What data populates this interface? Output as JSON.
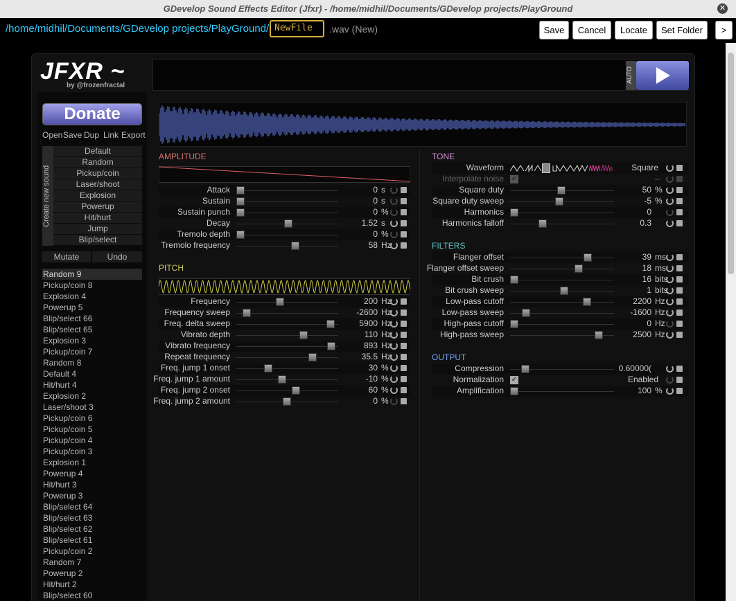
{
  "window": {
    "title": "GDevelop Sound Effects Editor (Jfxr) - /home/midhil/Documents/GDevelop projects/PlayGround"
  },
  "toolbar": {
    "path": "/home/midhil/Documents/GDevelop projects/PlayGround/",
    "filename": "NewFile",
    "extension": ".wav (New)",
    "buttons": [
      "Save",
      "Cancel",
      "Locate",
      "Set Folder",
      ">"
    ]
  },
  "logo": {
    "title": "JFXR ~",
    "byline": "by @frozenfractal"
  },
  "player": {
    "auto": "AUTO"
  },
  "sidebar": {
    "donate": "Donate",
    "file_actions": [
      "Open",
      "Save",
      "Dup",
      "Link",
      "Export"
    ],
    "create_label": "Create new sound",
    "presets": [
      "Default",
      "Random",
      "Pickup/coin",
      "Laser/shoot",
      "Explosion",
      "Powerup",
      "Hit/hurt",
      "Jump",
      "Blip/select"
    ],
    "mutate": "Mutate",
    "undo": "Undo",
    "history": [
      "Random 9",
      "Pickup/coin 8",
      "Explosion 4",
      "Powerup 5",
      "Blip/select 66",
      "Blip/select 65",
      "Explosion 3",
      "Pickup/coin 7",
      "Random 8",
      "Default 4",
      "Hit/hurt 4",
      "Explosion 2",
      "Laser/shoot 3",
      "Pickup/coin 6",
      "Pickup/coin 5",
      "Pickup/coin 4",
      "Pickup/coin 3",
      "Explosion 1",
      "Powerup 4",
      "Hit/hurt 3",
      "Powerup 3",
      "Blip/select 64",
      "Blip/select 63",
      "Blip/select 62",
      "Blip/select 61",
      "Pickup/coin 2",
      "Random 7",
      "Powerup 2",
      "Hit/hurt 2",
      "Blip/select 60"
    ]
  },
  "sections": [
    {
      "title": "AMPLITUDE",
      "params": [
        {
          "label": "Attack",
          "value": "0",
          "unit": "s"
        },
        {
          "label": "Sustain",
          "value": "0",
          "unit": "s"
        },
        {
          "label": "Sustain punch",
          "value": "0",
          "unit": "%"
        },
        {
          "label": "Decay",
          "value": "1.52",
          "unit": "s"
        },
        {
          "label": "Tremolo depth",
          "value": "0",
          "unit": "%"
        },
        {
          "label": "Tremolo frequency",
          "value": "58",
          "unit": "Hz"
        }
      ]
    },
    {
      "title": "PITCH",
      "params": [
        {
          "label": "Frequency",
          "value": "200",
          "unit": "Hz"
        },
        {
          "label": "Frequency sweep",
          "value": "-2600",
          "unit": "Hz"
        },
        {
          "label": "Freq. delta sweep",
          "value": "5900",
          "unit": "Hz"
        },
        {
          "label": "Vibrato depth",
          "value": "110",
          "unit": "Hz"
        },
        {
          "label": "Vibrato frequency",
          "value": "893",
          "unit": "Hz"
        },
        {
          "label": "Repeat frequency",
          "value": "35.5",
          "unit": "Hz"
        },
        {
          "label": "Freq. jump 1 onset",
          "value": "30",
          "unit": "%"
        },
        {
          "label": "Freq. jump 1 amount",
          "value": "-10",
          "unit": "%"
        },
        {
          "label": "Freq. jump 2 onset",
          "value": "60",
          "unit": "%"
        },
        {
          "label": "Freq. jump 2 amount",
          "value": "0",
          "unit": "%"
        }
      ]
    },
    {
      "title": "TONE",
      "params": [
        {
          "label": "Waveform",
          "value": "Square",
          "kind": "waveform"
        },
        {
          "label": "Interpolate noise",
          "value": "–",
          "kind": "checkbox-disabled"
        },
        {
          "label": "Square duty",
          "value": "50",
          "unit": "%"
        },
        {
          "label": "Square duty sweep",
          "value": "-5",
          "unit": "%"
        },
        {
          "label": "Harmonics",
          "value": "0"
        },
        {
          "label": "Harmonics falloff",
          "value": "0.3"
        }
      ]
    },
    {
      "title": "FILTERS",
      "params": [
        {
          "label": "Flanger offset",
          "value": "39",
          "unit": "ms"
        },
        {
          "label": "Flanger offset sweep",
          "value": "18",
          "unit": "ms"
        },
        {
          "label": "Bit crush",
          "value": "16",
          "unit": "bits"
        },
        {
          "label": "Bit crush sweep",
          "value": "1",
          "unit": "bits"
        },
        {
          "label": "Low-pass cutoff",
          "value": "2200",
          "unit": "Hz"
        },
        {
          "label": "Low-pass sweep",
          "value": "-1600",
          "unit": "Hz"
        },
        {
          "label": "High-pass cutoff",
          "value": "0",
          "unit": "Hz"
        },
        {
          "label": "High-pass sweep",
          "value": "2500",
          "unit": "Hz"
        }
      ]
    },
    {
      "title": "OUTPUT",
      "params": [
        {
          "label": "Compression",
          "value": "0.60000("
        },
        {
          "label": "Normalization",
          "value": "Enabled",
          "kind": "checkbox"
        },
        {
          "label": "Amplification",
          "value": "100",
          "unit": "%"
        }
      ]
    }
  ]
}
